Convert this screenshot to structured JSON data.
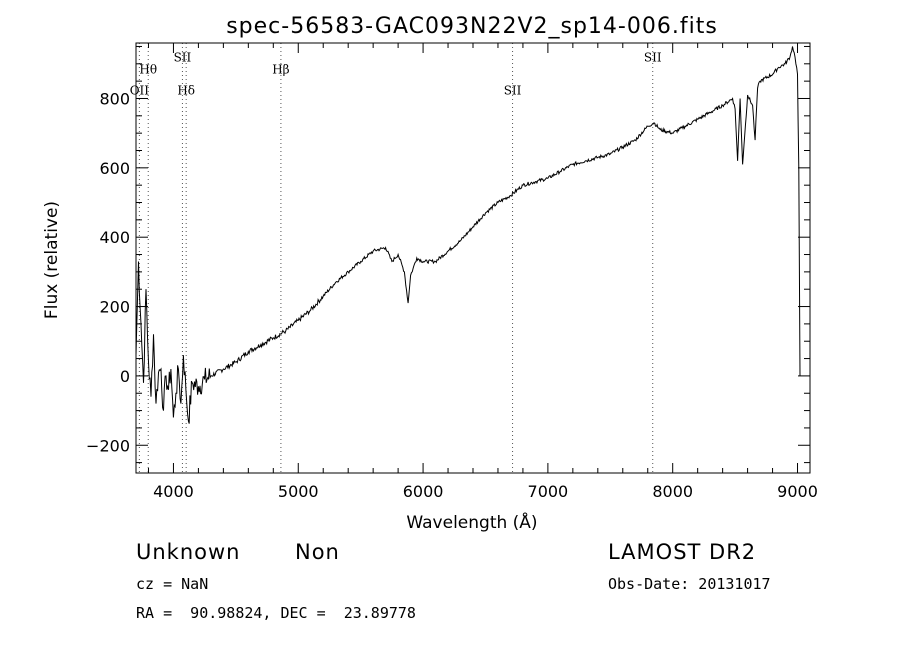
{
  "chart_data": {
    "type": "line",
    "title": "spec-56583-GAC093N22V2_sp14-006.fits",
    "xlabel": "Wavelength (Å)",
    "ylabel": "Flux (relative)",
    "xlim": [
      3700,
      9100
    ],
    "ylim": [
      -280,
      960
    ],
    "x_ticks": [
      4000,
      5000,
      6000,
      7000,
      8000,
      9000
    ],
    "y_ticks": [
      -200,
      0,
      200,
      400,
      600,
      800
    ],
    "grid": false,
    "legend": "none",
    "series": [
      {
        "x": [
          3700,
          3720,
          3740,
          3760,
          3780,
          3800,
          3820,
          3840,
          3860,
          3880,
          3900,
          3920,
          3940,
          3960,
          3980,
          4000,
          4020,
          4040,
          4060,
          4080,
          4100,
          4120,
          4150,
          4200,
          4250,
          4300,
          4400,
          4500,
          4600,
          4700,
          4800,
          4900,
          5000,
          5100,
          5200,
          5300,
          5400,
          5500,
          5600,
          5700,
          5750,
          5800,
          5850,
          5880,
          5900,
          5920,
          5950,
          6000,
          6100,
          6200,
          6300,
          6400,
          6500,
          6600,
          6700,
          6800,
          6900,
          7000,
          7100,
          7200,
          7300,
          7400,
          7500,
          7600,
          7700,
          7800,
          7850,
          7900,
          8000,
          8100,
          8200,
          8300,
          8400,
          8480,
          8500,
          8520,
          8540,
          8560,
          8600,
          8640,
          8660,
          8680,
          8700,
          8800,
          8850,
          8900,
          8940,
          8960,
          8980,
          9000,
          9010,
          9020
        ],
        "y": [
          60,
          330,
          150,
          -20,
          250,
          40,
          -60,
          120,
          -80,
          10,
          20,
          -100,
          0,
          -40,
          20,
          -120,
          -50,
          20,
          -80,
          60,
          -40,
          -130,
          -20,
          -30,
          -10,
          0,
          20,
          40,
          70,
          90,
          110,
          130,
          160,
          190,
          230,
          270,
          300,
          330,
          360,
          370,
          330,
          350,
          300,
          210,
          290,
          310,
          340,
          330,
          330,
          360,
          390,
          430,
          470,
          500,
          520,
          550,
          560,
          570,
          590,
          610,
          620,
          630,
          640,
          660,
          680,
          720,
          730,
          710,
          700,
          720,
          740,
          760,
          780,
          800,
          770,
          620,
          800,
          610,
          810,
          780,
          680,
          830,
          850,
          870,
          890,
          900,
          920,
          950,
          920,
          870,
          600,
          0
        ],
        "color": "#000000"
      }
    ],
    "lines": [
      {
        "label": "OII",
        "x": 3727,
        "label_y": 812
      },
      {
        "label": "Hθ",
        "x": 3798,
        "label_y": 872
      },
      {
        "label": "SII",
        "x": 4072,
        "label_y": 906
      },
      {
        "label": "Hδ",
        "x": 4102,
        "label_y": 812
      },
      {
        "label": "Hβ",
        "x": 4861,
        "label_y": 872
      },
      {
        "label": "SII",
        "x": 6717,
        "label_y": 812
      },
      {
        "label": "SII",
        "x": 7840,
        "label_y": 906
      }
    ]
  },
  "info": {
    "classification": "Unknown",
    "subclass": "Non",
    "survey": "LAMOST DR2",
    "cz": "cz = NaN",
    "obs_date": "Obs-Date: 20131017",
    "coords": "RA =  90.98824, DEC =  23.89778"
  }
}
